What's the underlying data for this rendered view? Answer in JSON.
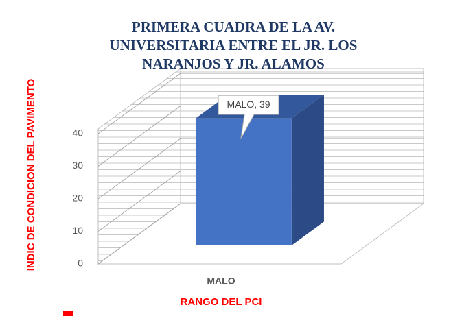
{
  "chart_data": {
    "type": "bar3d",
    "title": "PRIMERA CUADRA DE LA AV. UNIVERSITARIA ENTRE EL JR. LOS NARANJOS Y JR. ALAMOS",
    "x_label": "RANGO DEL PCI",
    "y_label": "INDIC DE CONDICION DEL PAVIMENTO",
    "categories": [
      "MALO"
    ],
    "values": [
      39
    ],
    "value_labels": [
      "MALO, 39"
    ],
    "color": "#4472c4",
    "ylim": [
      0,
      40
    ],
    "yticks": [
      0,
      10,
      20,
      30,
      40
    ],
    "grid": true
  }
}
